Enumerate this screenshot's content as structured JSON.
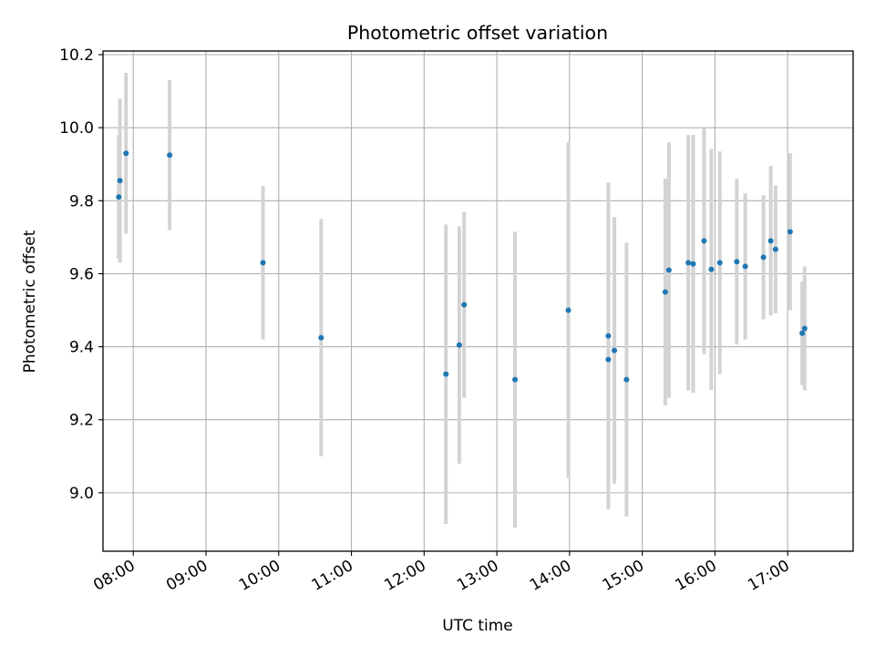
{
  "chart_data": {
    "type": "scatter",
    "title": "Photometric offset variation",
    "xlabel": "UTC time",
    "ylabel": "Photometric offset",
    "x_ticks": [
      "08:00",
      "09:00",
      "10:00",
      "11:00",
      "12:00",
      "13:00",
      "14:00",
      "15:00",
      "16:00",
      "17:00"
    ],
    "y_ticks": [
      "9.0",
      "9.2",
      "9.4",
      "9.6",
      "9.8",
      "10.0",
      "10.2"
    ],
    "xlim": [
      "07:35",
      "17:54"
    ],
    "ylim": [
      8.84,
      10.21
    ],
    "grid": true,
    "colors": {
      "point": "#1f77b4",
      "errorbar": "#d3d3d3",
      "grid": "#b0b0b0"
    },
    "series": [
      {
        "points": [
          {
            "x": "07:48",
            "y": 9.81,
            "yerr": 0.17
          },
          {
            "x": "07:49",
            "y": 9.855,
            "yerr": 0.225
          },
          {
            "x": "07:54",
            "y": 9.93,
            "yerr": 0.22
          },
          {
            "x": "08:30",
            "y": 9.925,
            "yerr": 0.205
          },
          {
            "x": "09:47",
            "y": 9.63,
            "yerr": 0.21
          },
          {
            "x": "10:35",
            "y": 9.425,
            "yerr": 0.325
          },
          {
            "x": "12:18",
            "y": 9.325,
            "yerr": 0.41
          },
          {
            "x": "12:29",
            "y": 9.405,
            "yerr": 0.325
          },
          {
            "x": "12:33",
            "y": 9.515,
            "yerr": 0.255
          },
          {
            "x": "13:15",
            "y": 9.31,
            "yerr": 0.405
          },
          {
            "x": "13:59",
            "y": 9.5,
            "yerr": 0.46
          },
          {
            "x": "14:32",
            "y": 9.43,
            "yerr": 0.42
          },
          {
            "x": "14:32",
            "y": 9.365,
            "yerr": 0.41
          },
          {
            "x": "14:37",
            "y": 9.39,
            "yerr": 0.365
          },
          {
            "x": "14:47",
            "y": 9.31,
            "yerr": 0.375
          },
          {
            "x": "15:19",
            "y": 9.55,
            "yerr": 0.31
          },
          {
            "x": "15:22",
            "y": 9.61,
            "yerr": 0.35
          },
          {
            "x": "15:38",
            "y": 9.63,
            "yerr": 0.35
          },
          {
            "x": "15:42",
            "y": 9.627,
            "yerr": 0.353
          },
          {
            "x": "15:51",
            "y": 9.69,
            "yerr": 0.31
          },
          {
            "x": "15:57",
            "y": 9.612,
            "yerr": 0.33
          },
          {
            "x": "16:04",
            "y": 9.63,
            "yerr": 0.305
          },
          {
            "x": "16:18",
            "y": 9.633,
            "yerr": 0.227
          },
          {
            "x": "16:25",
            "y": 9.62,
            "yerr": 0.2
          },
          {
            "x": "16:40",
            "y": 9.645,
            "yerr": 0.17
          },
          {
            "x": "16:46",
            "y": 9.69,
            "yerr": 0.205
          },
          {
            "x": "16:50",
            "y": 9.667,
            "yerr": 0.175
          },
          {
            "x": "17:02",
            "y": 9.715,
            "yerr": 0.215
          },
          {
            "x": "17:12",
            "y": 9.437,
            "yerr": 0.142
          },
          {
            "x": "17:14",
            "y": 9.45,
            "yerr": 0.17
          }
        ]
      }
    ]
  }
}
